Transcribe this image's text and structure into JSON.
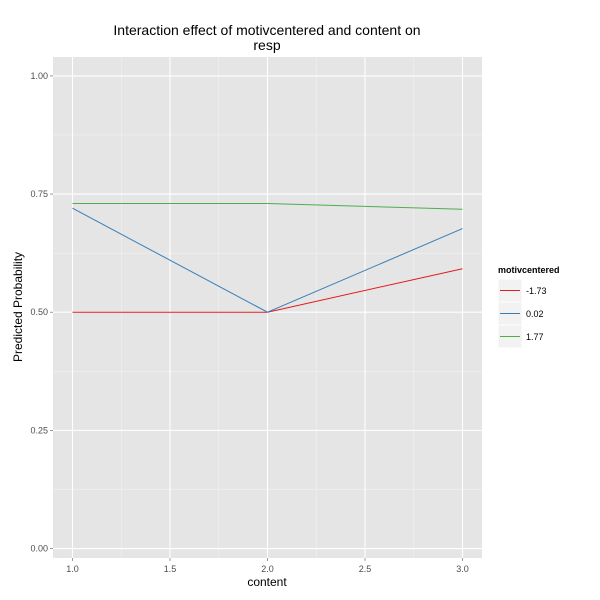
{
  "chart_data": {
    "type": "line",
    "title_lines": [
      "Interaction effect of motivcentered and content on",
      "resp"
    ],
    "xlabel": "content",
    "ylabel": "Predicted Probability",
    "x": [
      1.0,
      2.0,
      3.0
    ],
    "xlim": [
      0.9,
      3.1
    ],
    "ylim": [
      -0.02,
      1.04
    ],
    "x_ticks": [
      1.0,
      1.5,
      2.0,
      2.5,
      3.0
    ],
    "x_tick_labels": [
      "1.0",
      "1.5",
      "2.0",
      "2.5",
      "3.0"
    ],
    "y_ticks": [
      0.0,
      0.25,
      0.5,
      0.75,
      1.0
    ],
    "y_tick_labels": [
      "0.00",
      "0.25",
      "0.50",
      "0.75",
      "1.00"
    ],
    "grid": true,
    "legend_title": "motivcentered",
    "legend_position": "right",
    "series": [
      {
        "name": "-1.73",
        "color": "#e41a1c",
        "values": [
          0.5,
          0.5,
          0.592
        ]
      },
      {
        "name": "0.02",
        "color": "#377eb8",
        "values": [
          0.72,
          0.5,
          0.677
        ]
      },
      {
        "name": "1.77",
        "color": "#4daf4a",
        "values": [
          0.73,
          0.73,
          0.718
        ]
      }
    ],
    "panel_background": "#e5e5e5",
    "grid_color": "#ffffff"
  }
}
